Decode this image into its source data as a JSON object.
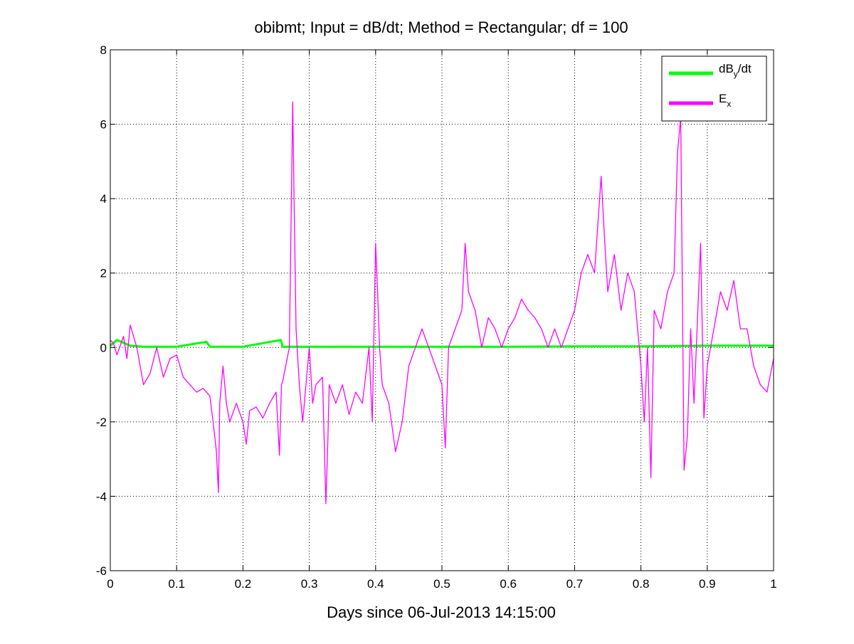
{
  "chart_data": {
    "type": "line",
    "title": "obibmt; Input = dB/dt; Method = Rectangular; df = 100",
    "xlabel": "Days since 06-Jul-2013 14:15:00",
    "ylabel": "",
    "xlim": [
      0,
      1
    ],
    "ylim": [
      -6,
      8
    ],
    "x_ticks": [
      0,
      0.1,
      0.2,
      0.3,
      0.4,
      0.5,
      0.6,
      0.7,
      0.8,
      0.9,
      1
    ],
    "x_tick_labels": [
      "0",
      "0.1",
      "0.2",
      "0.3",
      "0.4",
      "0.5",
      "0.6",
      "0.7",
      "0.8",
      "0.9",
      "1"
    ],
    "y_ticks": [
      -6,
      -4,
      -2,
      0,
      2,
      4,
      6,
      8
    ],
    "y_tick_labels": [
      "-6",
      "-4",
      "-2",
      "0",
      "2",
      "4",
      "6",
      "8"
    ],
    "grid": true,
    "legend_position": "top-right",
    "series": [
      {
        "name": "dB_y/dt",
        "legend_main": "dB",
        "legend_sub": "y",
        "legend_tail": "/dt",
        "color": "#00ff00",
        "x": [
          0,
          0.01,
          0.03,
          0.05,
          0.1,
          0.145,
          0.15,
          0.2,
          0.257,
          0.26,
          0.3,
          0.4,
          0.5,
          0.6,
          0.7,
          0.8,
          0.9,
          1.0
        ],
        "y": [
          0.05,
          0.2,
          0.05,
          0.02,
          0.02,
          0.15,
          0.02,
          0.02,
          0.2,
          0.02,
          0.02,
          0.02,
          0.02,
          0.02,
          0.03,
          0.03,
          0.05,
          0.05
        ]
      },
      {
        "name": "E_x",
        "legend_main": "E",
        "legend_sub": "x",
        "legend_tail": "",
        "color": "#ff00ff",
        "x": [
          0,
          0.005,
          0.01,
          0.02,
          0.025,
          0.03,
          0.04,
          0.05,
          0.06,
          0.07,
          0.08,
          0.09,
          0.1,
          0.11,
          0.12,
          0.13,
          0.14,
          0.15,
          0.155,
          0.16,
          0.163,
          0.165,
          0.17,
          0.175,
          0.18,
          0.19,
          0.2,
          0.205,
          0.21,
          0.22,
          0.23,
          0.24,
          0.25,
          0.255,
          0.258,
          0.26,
          0.27,
          0.275,
          0.277,
          0.28,
          0.285,
          0.29,
          0.3,
          0.305,
          0.31,
          0.32,
          0.325,
          0.328,
          0.33,
          0.34,
          0.35,
          0.36,
          0.37,
          0.38,
          0.39,
          0.395,
          0.4,
          0.403,
          0.406,
          0.41,
          0.42,
          0.43,
          0.44,
          0.45,
          0.46,
          0.47,
          0.48,
          0.49,
          0.5,
          0.505,
          0.51,
          0.52,
          0.53,
          0.535,
          0.54,
          0.55,
          0.56,
          0.57,
          0.58,
          0.59,
          0.6,
          0.61,
          0.62,
          0.63,
          0.64,
          0.65,
          0.66,
          0.67,
          0.68,
          0.69,
          0.7,
          0.71,
          0.72,
          0.73,
          0.74,
          0.745,
          0.75,
          0.76,
          0.77,
          0.78,
          0.79,
          0.8,
          0.805,
          0.81,
          0.815,
          0.82,
          0.83,
          0.84,
          0.85,
          0.855,
          0.86,
          0.865,
          0.87,
          0.875,
          0.88,
          0.89,
          0.895,
          0.9,
          0.91,
          0.92,
          0.93,
          0.94,
          0.95,
          0.96,
          0.97,
          0.98,
          0.99,
          1.0
        ],
        "y": [
          0.2,
          0.1,
          -0.2,
          0.3,
          -0.3,
          0.6,
          0.0,
          -1.0,
          -0.7,
          0.0,
          -0.8,
          -0.3,
          -0.2,
          -0.8,
          -1.0,
          -1.2,
          -1.1,
          -1.3,
          -2.0,
          -2.8,
          -3.9,
          -1.5,
          -0.5,
          -1.5,
          -2.0,
          -1.5,
          -2.0,
          -2.6,
          -1.7,
          -1.6,
          -1.9,
          -1.5,
          -1.2,
          -2.9,
          -1.0,
          -0.9,
          0.0,
          6.6,
          4.0,
          0.5,
          -1.0,
          -2.0,
          0.0,
          -1.5,
          -1.0,
          -0.8,
          -4.2,
          -2.5,
          -1.0,
          -1.5,
          -1.0,
          -1.8,
          -1.2,
          -1.5,
          0.0,
          -2.0,
          2.8,
          1.5,
          0.0,
          -1.0,
          -1.5,
          -2.8,
          -2.0,
          -0.5,
          0.0,
          0.5,
          0.0,
          -0.5,
          -1.0,
          -2.7,
          0.0,
          0.5,
          1.0,
          2.8,
          1.5,
          1.0,
          0.0,
          0.8,
          0.5,
          0.0,
          0.5,
          0.8,
          1.3,
          1.0,
          0.8,
          0.5,
          0.0,
          0.5,
          0.0,
          0.5,
          1.0,
          2.0,
          2.5,
          2.0,
          4.6,
          3.0,
          1.5,
          2.5,
          1.0,
          2.0,
          1.5,
          -0.5,
          -2.0,
          0.0,
          -3.5,
          1.0,
          0.5,
          1.5,
          2.0,
          5.2,
          6.2,
          -3.3,
          -2.4,
          0.5,
          -1.5,
          2.8,
          -1.9,
          -0.5,
          0.5,
          1.5,
          1.0,
          1.8,
          0.5,
          0.5,
          -0.5,
          -1.0,
          -1.2,
          -0.3
        ]
      }
    ]
  }
}
